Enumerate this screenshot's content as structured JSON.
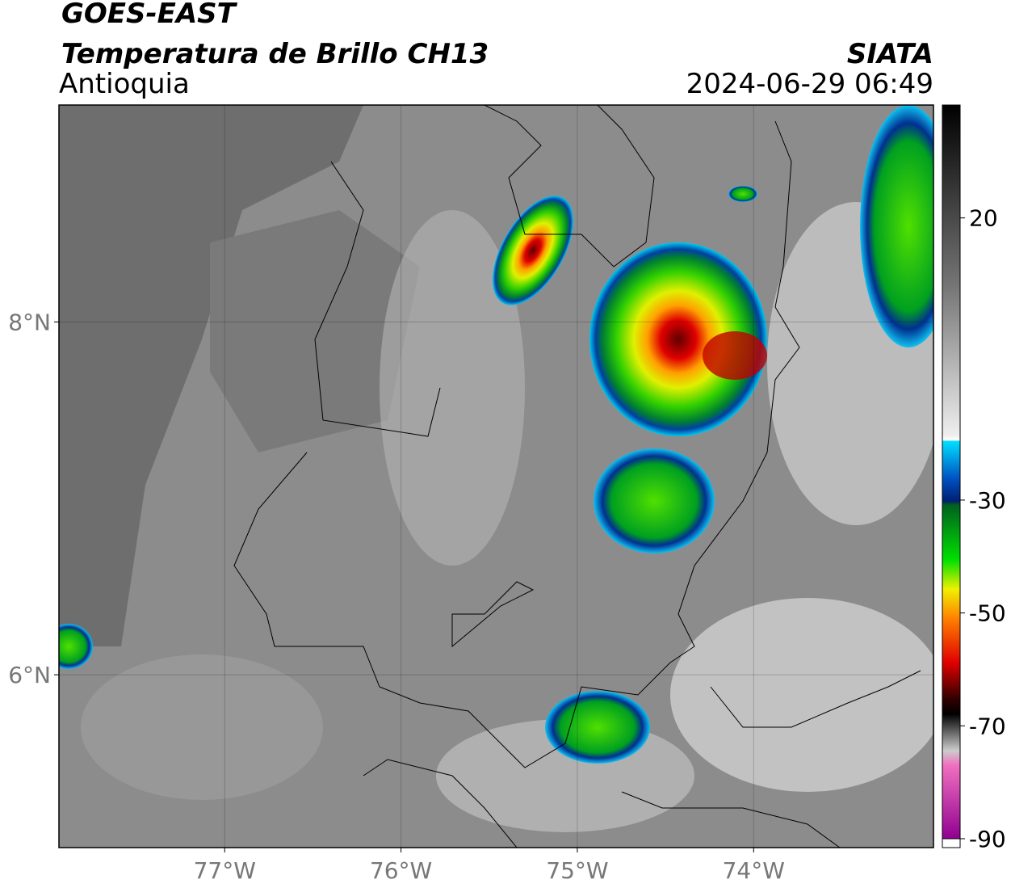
{
  "header": {
    "satellite": "GOES-EAST",
    "product": "Temperatura de Brillo CH13",
    "region": "Antioquia",
    "source": "SIATA",
    "datetime": "2024-06-29 06:49"
  },
  "map": {
    "xlim": [
      -77.94,
      -72.98
    ],
    "ylim": [
      5.02,
      9.23
    ],
    "xticks": [
      {
        "value": -77,
        "label": "77°W"
      },
      {
        "value": -76,
        "label": "76°W"
      },
      {
        "value": -75,
        "label": "75°W"
      },
      {
        "value": -74,
        "label": "74°W"
      }
    ],
    "yticks": [
      {
        "value": 6,
        "label": "6°N"
      },
      {
        "value": 8,
        "label": "8°N"
      }
    ],
    "grid": true
  },
  "colorbar": {
    "lim": [
      -90,
      40
    ],
    "ticks": [
      -90,
      -70,
      -50,
      -30,
      20
    ]
  }
}
